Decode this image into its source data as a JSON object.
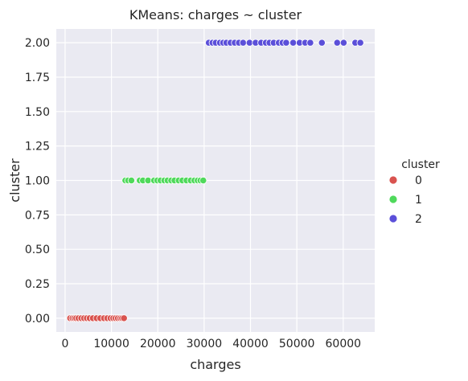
{
  "chart_data": {
    "type": "scatter",
    "title": "KMeans: charges ~ cluster",
    "xlabel": "charges",
    "ylabel": "cluster",
    "xlim": [
      -1900,
      66800
    ],
    "ylim": [
      -0.1,
      2.1
    ],
    "xticks": [
      0,
      10000,
      20000,
      30000,
      40000,
      50000,
      60000
    ],
    "xtick_labels": [
      "0",
      "10000",
      "20000",
      "30000",
      "40000",
      "50000",
      "60000"
    ],
    "yticks": [
      0,
      0.25,
      0.5,
      0.75,
      1,
      1.25,
      1.5,
      1.75,
      2
    ],
    "ytick_labels": [
      "0.00",
      "0.25",
      "0.50",
      "0.75",
      "1.00",
      "1.25",
      "1.50",
      "1.75",
      "2.00"
    ],
    "grid": true,
    "legend": {
      "title": "cluster",
      "position": "right"
    },
    "series": [
      {
        "name": "0",
        "color": "#d9534f",
        "x": [
          1100,
          1600,
          2000,
          2400,
          2900,
          3500,
          4100,
          4700,
          5300,
          6000,
          6800,
          7600,
          8400,
          9100,
          9800,
          10400,
          10900,
          11400,
          11900,
          12300,
          12700
        ],
        "y": [
          0,
          0,
          0,
          0,
          0,
          0,
          0,
          0,
          0,
          0,
          0,
          0,
          0,
          0,
          0,
          0,
          0,
          0,
          0,
          0,
          0
        ]
      },
      {
        "name": "1",
        "color": "#4fd95b",
        "x": [
          13000,
          13600,
          14300,
          16100,
          16800,
          17900,
          19200,
          19900,
          20600,
          21400,
          22100,
          22900,
          23600,
          24500,
          25300,
          26200,
          27100,
          27900,
          28600,
          29200,
          29800
        ],
        "y": [
          1,
          1,
          1,
          1,
          1,
          1,
          1,
          1,
          1,
          1,
          1,
          1,
          1,
          1,
          1,
          1,
          1,
          1,
          1,
          1,
          1
        ]
      },
      {
        "name": "2",
        "color": "#5b4fd9",
        "x": [
          31000,
          31800,
          32500,
          33400,
          34100,
          34800,
          35700,
          36600,
          37500,
          38400,
          39800,
          41100,
          42300,
          43300,
          44100,
          45000,
          46100,
          46900,
          47700,
          49200,
          50600,
          51800,
          52900,
          55400,
          58700,
          60100,
          62600,
          63700
        ],
        "y": [
          2,
          2,
          2,
          2,
          2,
          2,
          2,
          2,
          2,
          2,
          2,
          2,
          2,
          2,
          2,
          2,
          2,
          2,
          2,
          2,
          2,
          2,
          2,
          2,
          2,
          2,
          2,
          2
        ]
      }
    ]
  }
}
